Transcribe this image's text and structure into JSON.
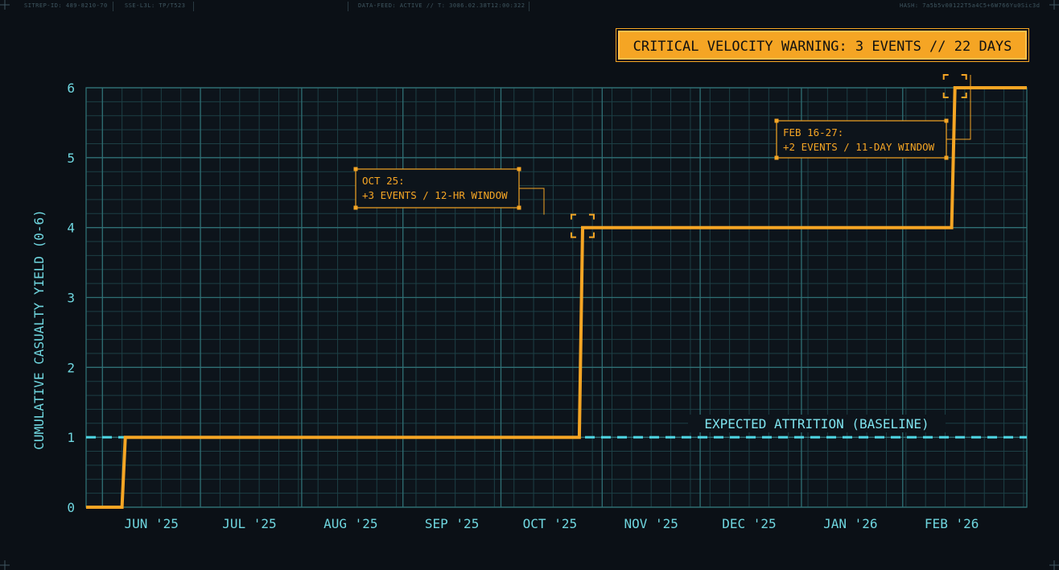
{
  "header": {
    "left_id": "SITREP-ID: 489-8210-70",
    "sector": "SSE-L3L: TP/T523",
    "feed": "DATA-FEED: ACTIVE // T: 3086.02.38T12:00:322",
    "hash": "HASH: 7a5b5v00122T5a4C5+6W766Yu0Sic3d"
  },
  "warning_banner": "CRITICAL VELOCITY WARNING: 3 EVENTS // 22 DAYS",
  "colors": {
    "background": "#0b1016",
    "grid_major": "#2f6f74",
    "grid_minor": "#1d3f45",
    "axis_text": "#6fd6df",
    "series": "#f5a524",
    "baseline": "#4fd8e6"
  },
  "chart_data": {
    "type": "line",
    "step": true,
    "title": "",
    "xlabel": "",
    "ylabel": "CUMULATIVE CASUALTY YIELD (0-6)",
    "ylim": [
      0,
      6
    ],
    "yticks": [
      "0",
      "1",
      "2",
      "3",
      "4",
      "5",
      "6"
    ],
    "xlim": [
      "2025-05-27",
      "2026-03-11"
    ],
    "xticks": [
      {
        "date": "2025-06-01",
        "label": "JUN '25"
      },
      {
        "date": "2025-07-01",
        "label": "JUL '25"
      },
      {
        "date": "2025-08-01",
        "label": "AUG '25"
      },
      {
        "date": "2025-09-01",
        "label": "SEP '25"
      },
      {
        "date": "2025-10-01",
        "label": "OCT '25"
      },
      {
        "date": "2025-11-01",
        "label": "NOV '25"
      },
      {
        "date": "2025-12-01",
        "label": "DEC '25"
      },
      {
        "date": "2026-01-01",
        "label": "JAN '26"
      },
      {
        "date": "2026-02-01",
        "label": "FEB '26"
      }
    ],
    "grid": true,
    "series": [
      {
        "points": [
          {
            "x": "2025-05-27",
            "y": 0
          },
          {
            "x": "2025-06-07",
            "y": 0
          },
          {
            "x": "2025-06-08",
            "y": 1
          },
          {
            "x": "2025-10-25",
            "y": 1
          },
          {
            "x": "2025-10-26",
            "y": 4
          },
          {
            "x": "2026-02-16",
            "y": 4
          },
          {
            "x": "2026-02-17",
            "y": 6
          },
          {
            "x": "2026-03-11",
            "y": 6
          }
        ]
      }
    ],
    "baseline": {
      "label": "EXPECTED ATTRITION (BASELINE)",
      "y": 1
    },
    "annotations": [
      {
        "line1": "OCT 25:",
        "line2": "+3 EVENTS / 12-HR WINDOW",
        "x": "2025-10-26",
        "y": 4
      },
      {
        "line1": "FEB 16-27:",
        "line2": "+2 EVENTS / 11-DAY WINDOW",
        "x": "2026-02-17",
        "y": 6
      }
    ]
  }
}
